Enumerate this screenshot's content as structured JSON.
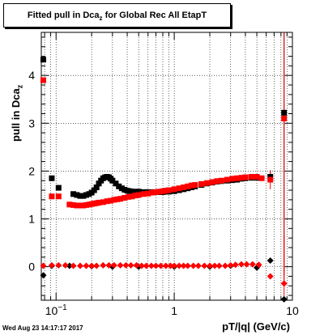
{
  "title": {
    "prefix": "Fitted pull in Dca",
    "subscript": "z",
    "suffix": " for Global Rec All EtapT"
  },
  "ylabel": {
    "main": "pull in Dca",
    "subscript": "z"
  },
  "xlabel": "pT/|q| (GeV/c)",
  "timestamp": "Wed Aug 23 14:17:17 2017",
  "chart_data": {
    "type": "scatter",
    "xscale": "log",
    "xlim": [
      0.075,
      10
    ],
    "ylim": [
      -0.7,
      4.9
    ],
    "grid": true,
    "xticks": [
      {
        "value": 0.1,
        "label": "10",
        "exp": "−1"
      },
      {
        "value": 1,
        "label": "1",
        "exp": ""
      },
      {
        "value": 10,
        "label": "10",
        "exp": ""
      }
    ],
    "yticks": [
      0,
      1,
      2,
      3,
      4
    ],
    "series": [
      {
        "kind": "width",
        "marker": "square",
        "color": "#000000",
        "points": [
          [
            0.078,
            4.33
          ],
          [
            0.092,
            1.85
          ],
          [
            0.105,
            1.65
          ],
          [
            0.14,
            1.52
          ],
          [
            0.15,
            1.5
          ],
          [
            0.16,
            1.48
          ],
          [
            0.17,
            1.48
          ],
          [
            0.18,
            1.5
          ],
          [
            0.19,
            1.52
          ],
          [
            0.2,
            1.55
          ],
          [
            0.21,
            1.6
          ],
          [
            0.22,
            1.66
          ],
          [
            0.23,
            1.74
          ],
          [
            0.24,
            1.8
          ],
          [
            0.25,
            1.85
          ],
          [
            0.26,
            1.87
          ],
          [
            0.27,
            1.88
          ],
          [
            0.28,
            1.87
          ],
          [
            0.29,
            1.84
          ],
          [
            0.3,
            1.8
          ],
          [
            0.32,
            1.74
          ],
          [
            0.34,
            1.68
          ],
          [
            0.36,
            1.64
          ],
          [
            0.38,
            1.61
          ],
          [
            0.4,
            1.59
          ],
          [
            0.42,
            1.58
          ],
          [
            0.44,
            1.57
          ],
          [
            0.47,
            1.57
          ],
          [
            0.5,
            1.57
          ],
          [
            0.55,
            1.56
          ],
          [
            0.6,
            1.56
          ],
          [
            0.65,
            1.56
          ],
          [
            0.7,
            1.56
          ],
          [
            0.75,
            1.56
          ],
          [
            0.8,
            1.56
          ],
          [
            0.85,
            1.57
          ],
          [
            0.9,
            1.57
          ],
          [
            1.0,
            1.58
          ],
          [
            1.1,
            1.6
          ],
          [
            1.2,
            1.62
          ],
          [
            1.3,
            1.64
          ],
          [
            1.4,
            1.66
          ],
          [
            1.5,
            1.68
          ],
          [
            1.7,
            1.71
          ],
          [
            1.9,
            1.74
          ],
          [
            2.1,
            1.76
          ],
          [
            2.3,
            1.78
          ],
          [
            2.5,
            1.79
          ],
          [
            2.8,
            1.8
          ],
          [
            3.1,
            1.81
          ],
          [
            3.4,
            1.82
          ],
          [
            3.7,
            1.84
          ],
          [
            4.0,
            1.85
          ],
          [
            4.5,
            1.86
          ],
          [
            5.0,
            1.86
          ],
          [
            6.5,
            1.88
          ],
          [
            8.5,
            3.22
          ]
        ],
        "errors": [
          [
            6.5,
            0.12
          ],
          [
            8.5,
            3.4
          ]
        ]
      },
      {
        "kind": "width",
        "marker": "square",
        "color": "#ff0000",
        "points": [
          [
            0.078,
            3.9
          ],
          [
            0.092,
            1.47
          ],
          [
            0.105,
            1.47
          ],
          [
            0.13,
            1.3
          ],
          [
            0.14,
            1.29
          ],
          [
            0.15,
            1.28
          ],
          [
            0.16,
            1.28
          ],
          [
            0.17,
            1.28
          ],
          [
            0.18,
            1.29
          ],
          [
            0.19,
            1.3
          ],
          [
            0.2,
            1.31
          ],
          [
            0.21,
            1.32
          ],
          [
            0.22,
            1.33
          ],
          [
            0.23,
            1.34
          ],
          [
            0.25,
            1.35
          ],
          [
            0.27,
            1.37
          ],
          [
            0.29,
            1.38
          ],
          [
            0.31,
            1.4
          ],
          [
            0.33,
            1.41
          ],
          [
            0.35,
            1.42
          ],
          [
            0.38,
            1.44
          ],
          [
            0.41,
            1.46
          ],
          [
            0.44,
            1.47
          ],
          [
            0.47,
            1.49
          ],
          [
            0.5,
            1.5
          ],
          [
            0.55,
            1.52
          ],
          [
            0.6,
            1.53
          ],
          [
            0.65,
            1.55
          ],
          [
            0.7,
            1.56
          ],
          [
            0.75,
            1.57
          ],
          [
            0.8,
            1.58
          ],
          [
            0.85,
            1.59
          ],
          [
            0.9,
            1.6
          ],
          [
            1.0,
            1.62
          ],
          [
            1.1,
            1.64
          ],
          [
            1.2,
            1.66
          ],
          [
            1.3,
            1.68
          ],
          [
            1.4,
            1.7
          ],
          [
            1.5,
            1.71
          ],
          [
            1.7,
            1.73
          ],
          [
            1.9,
            1.75
          ],
          [
            2.1,
            1.77
          ],
          [
            2.3,
            1.79
          ],
          [
            2.5,
            1.8
          ],
          [
            2.8,
            1.82
          ],
          [
            3.1,
            1.84
          ],
          [
            3.4,
            1.85
          ],
          [
            3.7,
            1.86
          ],
          [
            4.0,
            1.87
          ],
          [
            4.5,
            1.88
          ],
          [
            5.0,
            1.88
          ],
          [
            5.5,
            1.85
          ],
          [
            6.5,
            1.82
          ],
          [
            8.5,
            3.1
          ]
        ],
        "errors": [
          [
            6.5,
            0.2
          ],
          [
            8.5,
            3.5
          ]
        ]
      },
      {
        "kind": "mean",
        "marker": "diamond",
        "color": "#000000",
        "points": [
          [
            0.078,
            -0.18
          ],
          [
            0.092,
            0.02
          ],
          [
            0.13,
            0.02
          ],
          [
            0.2,
            0.01
          ],
          [
            0.3,
            0.0
          ],
          [
            0.5,
            0.0
          ],
          [
            1.0,
            0.0
          ],
          [
            2.0,
            0.0
          ],
          [
            3.0,
            0.02
          ],
          [
            5.0,
            -0.02
          ],
          [
            6.5,
            0.13
          ],
          [
            8.5,
            -0.68
          ]
        ]
      },
      {
        "kind": "mean",
        "marker": "diamond",
        "color": "#ff0000",
        "points": [
          [
            0.078,
            0.02
          ],
          [
            0.092,
            0.03
          ],
          [
            0.105,
            0.03
          ],
          [
            0.12,
            0.03
          ],
          [
            0.14,
            0.02
          ],
          [
            0.16,
            0.02
          ],
          [
            0.18,
            0.02
          ],
          [
            0.2,
            0.02
          ],
          [
            0.22,
            0.02
          ],
          [
            0.25,
            0.03
          ],
          [
            0.28,
            0.03
          ],
          [
            0.31,
            0.03
          ],
          [
            0.35,
            0.03
          ],
          [
            0.39,
            0.03
          ],
          [
            0.43,
            0.03
          ],
          [
            0.48,
            0.03
          ],
          [
            0.53,
            0.02
          ],
          [
            0.58,
            0.02
          ],
          [
            0.64,
            0.02
          ],
          [
            0.7,
            0.02
          ],
          [
            0.77,
            0.02
          ],
          [
            0.85,
            0.02
          ],
          [
            0.93,
            0.02
          ],
          [
            1.0,
            0.02
          ],
          [
            1.1,
            0.02
          ],
          [
            1.2,
            0.02
          ],
          [
            1.3,
            0.02
          ],
          [
            1.45,
            0.02
          ],
          [
            1.6,
            0.02
          ],
          [
            1.8,
            0.02
          ],
          [
            2.0,
            0.02
          ],
          [
            2.2,
            0.02
          ],
          [
            2.4,
            0.02
          ],
          [
            2.7,
            0.02
          ],
          [
            3.0,
            0.03
          ],
          [
            3.3,
            0.04
          ],
          [
            3.7,
            0.05
          ],
          [
            4.1,
            0.05
          ],
          [
            4.6,
            0.05
          ],
          [
            5.2,
            0.04
          ],
          [
            6.5,
            -0.2
          ],
          [
            8.5,
            -0.35
          ]
        ],
        "errors": [
          [
            8.5,
            1.0
          ]
        ]
      }
    ]
  }
}
